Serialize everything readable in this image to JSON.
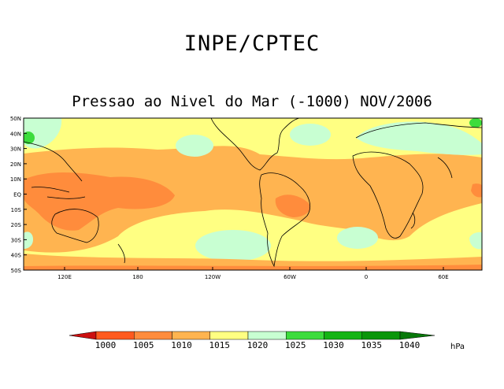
{
  "header": {
    "org": "INPE/CPTEC"
  },
  "map": {
    "title": "Pressao ao Nivel do Mar (-1000) NOV/2006",
    "lat_labels": [
      "50N",
      "40N",
      "30N",
      "20N",
      "10N",
      "EQ",
      "10S",
      "20S",
      "30S",
      "40S",
      "50S"
    ],
    "lon_labels": [
      "120E",
      "180",
      "120W",
      "60W",
      "0",
      "60E"
    ]
  },
  "legend": {
    "levels": [
      "1000",
      "1005",
      "1010",
      "1015",
      "1020",
      "1025",
      "1030",
      "1035",
      "1040"
    ],
    "colors": [
      "#cc1010",
      "#ff5a1e",
      "#ff8c3c",
      "#ffb450",
      "#ffff82",
      "#c8ffd2",
      "#3cdc3c",
      "#14b414",
      "#0a960a",
      "#08780a"
    ],
    "units": "hPa"
  }
}
